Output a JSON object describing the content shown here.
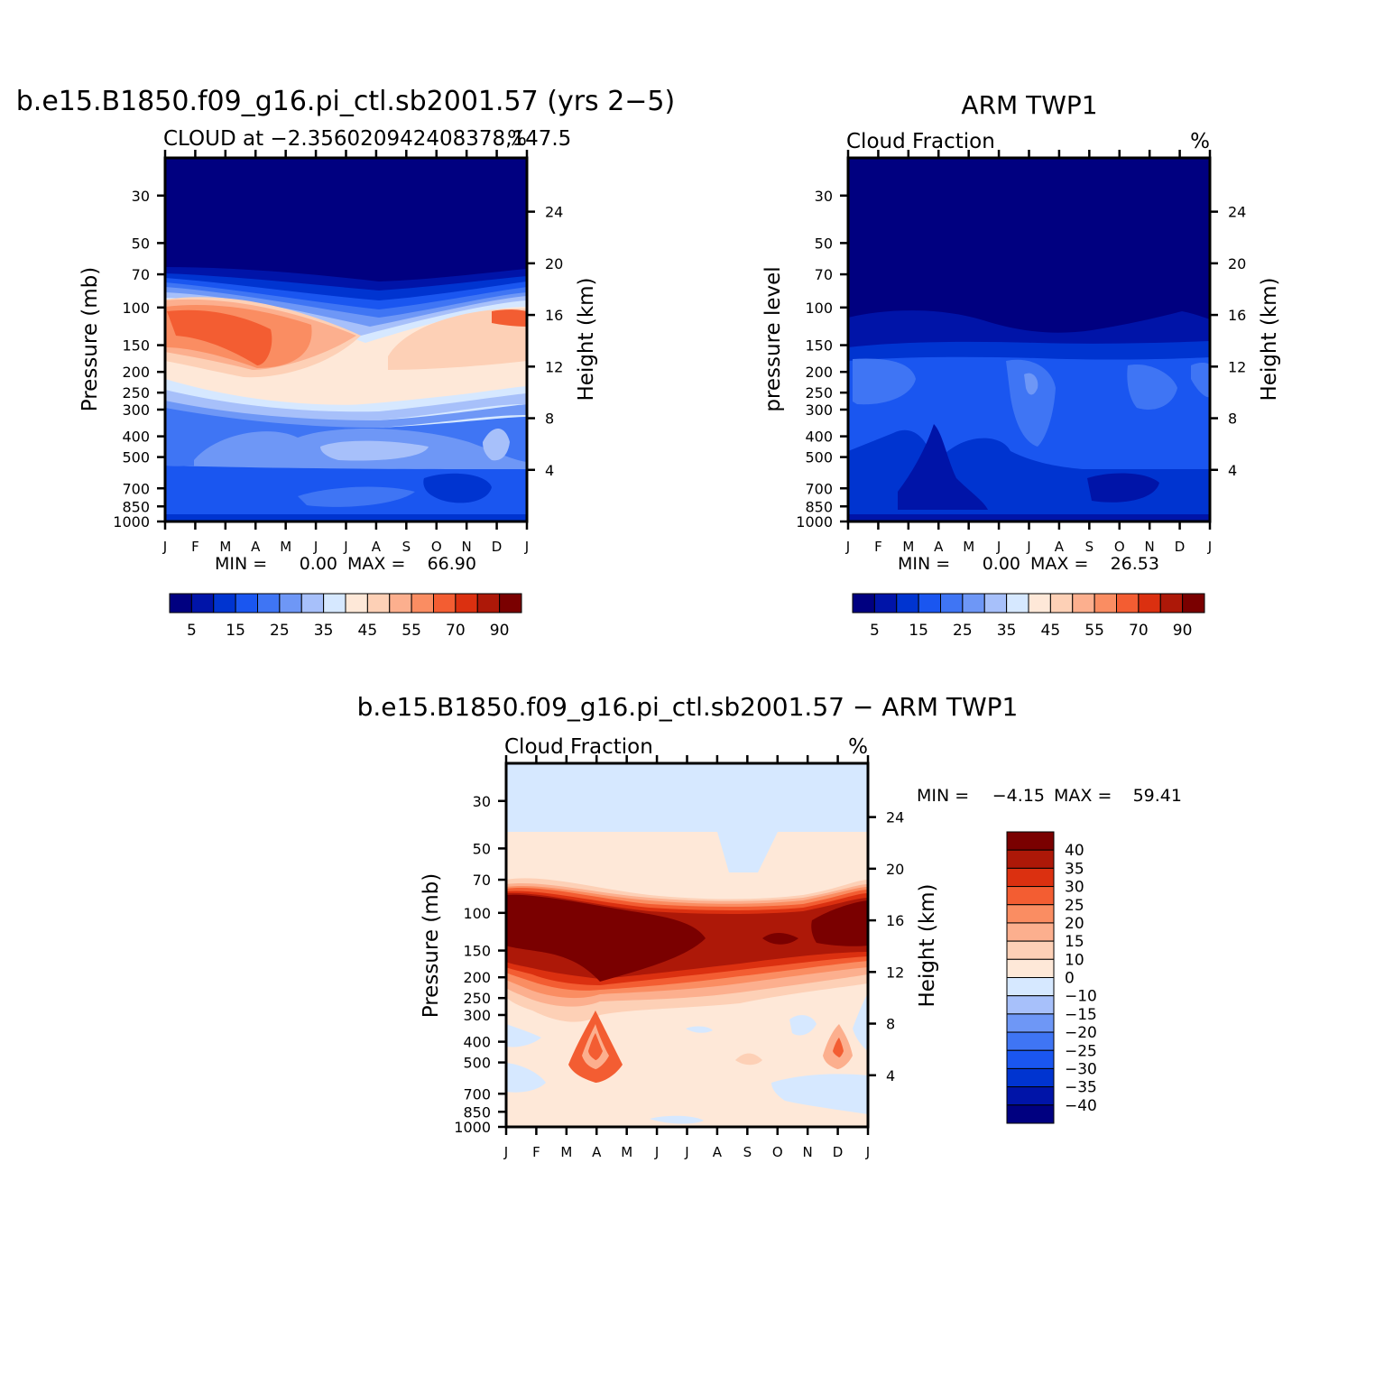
{
  "colors": {
    "abs_scale": [
      "#000080",
      "#0014a8",
      "#0034d0",
      "#1a56f0",
      "#3f75f4",
      "#6e97f6",
      "#a7c0fa",
      "#d6e8ff",
      "#fee8d8",
      "#fdd0b6",
      "#fcaf8e",
      "#fa8d62",
      "#f35d32",
      "#db3010",
      "#ad1808",
      "#7a0000"
    ],
    "diff_scale": [
      "#000080",
      "#0014a8",
      "#0034d0",
      "#1a56f0",
      "#3f75f4",
      "#6e97f6",
      "#a7c0fa",
      "#d6e8ff",
      "#fee8d8",
      "#fdd0b6",
      "#fcaf8e",
      "#fa8d62",
      "#f35d32",
      "#db3010",
      "#ad1808",
      "#7a0000"
    ]
  },
  "chart_data": [
    {
      "type": "heatmap",
      "title": "b.e15.B1850.f09_g16.pi_ctl.sb2001.57 (yrs 2−5)",
      "subtitle": "CLOUD at −2.356020942408378,147.5",
      "units": "%",
      "ylabel": "Pressure (mb)",
      "ylabel_right": "Height (km)",
      "x_ticklabels": [
        "J",
        "F",
        "M",
        "A",
        "M",
        "J",
        "J",
        "A",
        "S",
        "O",
        "N",
        "D",
        "J"
      ],
      "y_ticklabels": [
        "30",
        "50",
        "70",
        "100",
        "150",
        "200",
        "250",
        "300",
        "400",
        "500",
        "700",
        "850",
        "1000"
      ],
      "y_right_ticklabels": [
        "24",
        "20",
        "16",
        "12",
        "8",
        "4"
      ],
      "stats": {
        "min_label": "MIN =",
        "min": "0.00",
        "max_label": "MAX =",
        "max": "66.90"
      },
      "colorbar_labels": [
        "5",
        "15",
        "25",
        "35",
        "45",
        "55",
        "70",
        "90"
      ],
      "levels_note": "contour levels 1,5,10,15,20,25,30,35,40,45,50,55,60,70,80,90",
      "scale": "log-pressure",
      "grid": false
    },
    {
      "type": "heatmap",
      "title": "ARM TWP1",
      "subtitle": "Cloud Fraction",
      "units": "%",
      "ylabel": "pressure level",
      "ylabel_right": "Height (km)",
      "x_ticklabels": [
        "J",
        "F",
        "M",
        "A",
        "M",
        "J",
        "J",
        "A",
        "S",
        "O",
        "N",
        "D",
        "J"
      ],
      "y_ticklabels": [
        "30",
        "50",
        "70",
        "100",
        "150",
        "200",
        "250",
        "300",
        "400",
        "500",
        "700",
        "850",
        "1000"
      ],
      "y_right_ticklabels": [
        "24",
        "20",
        "16",
        "12",
        "8",
        "4"
      ],
      "stats": {
        "min_label": "MIN =",
        "min": "0.00",
        "max_label": "MAX =",
        "max": "26.53"
      },
      "colorbar_labels": [
        "5",
        "15",
        "25",
        "35",
        "45",
        "55",
        "70",
        "90"
      ],
      "scale": "log-pressure",
      "grid": false
    },
    {
      "type": "heatmap",
      "title": "b.e15.B1850.f09_g16.pi_ctl.sb2001.57 − ARM TWP1",
      "subtitle": "Cloud Fraction",
      "units": "%",
      "ylabel": "Pressure (mb)",
      "ylabel_right": "Height (km)",
      "x_ticklabels": [
        "J",
        "F",
        "M",
        "A",
        "M",
        "J",
        "J",
        "A",
        "S",
        "O",
        "N",
        "D",
        "J"
      ],
      "y_ticklabels": [
        "30",
        "50",
        "70",
        "100",
        "150",
        "200",
        "250",
        "300",
        "400",
        "500",
        "700",
        "850",
        "1000"
      ],
      "y_right_ticklabels": [
        "24",
        "20",
        "16",
        "12",
        "8",
        "4"
      ],
      "stats": {
        "min_label": "MIN =",
        "min": "−4.15",
        "max_label": "MAX =",
        "max": "59.41"
      },
      "colorbar_labels": [
        "40",
        "35",
        "30",
        "25",
        "20",
        "15",
        "10",
        "0",
        "−10",
        "−15",
        "−20",
        "−25",
        "−30",
        "−35",
        "−40"
      ],
      "scale": "log-pressure",
      "grid": false
    }
  ]
}
